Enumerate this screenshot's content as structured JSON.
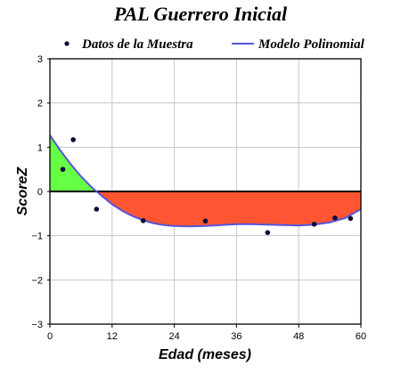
{
  "chart_data": {
    "type": "scatter",
    "title": "PAL Guerrero Inicial",
    "xlabel": "Edad (meses)",
    "ylabel": "ScoreZ",
    "xlim": [
      0,
      60
    ],
    "ylim": [
      -3,
      3
    ],
    "xticks": [
      0,
      12,
      24,
      36,
      48,
      60
    ],
    "yticks": [
      -3,
      -2,
      -1,
      0,
      1,
      2,
      3
    ],
    "grid": true,
    "legend": [
      {
        "label": "Datos de la Muestra",
        "kind": "marker"
      },
      {
        "label": "Modelo Polinomial",
        "kind": "line"
      }
    ],
    "series": [
      {
        "name": "Datos de la Muestra",
        "kind": "scatter",
        "x": [
          2.5,
          4.5,
          9,
          18,
          30,
          42,
          51,
          55,
          58
        ],
        "y": [
          0.5,
          1.17,
          -0.4,
          -0.66,
          -0.67,
          -0.93,
          -0.74,
          -0.6,
          -0.61
        ]
      },
      {
        "name": "Modelo Polinomial",
        "kind": "line",
        "x": [
          0,
          2,
          4,
          6,
          8,
          9,
          10,
          12,
          14,
          16,
          18,
          20,
          22,
          24,
          27,
          30,
          33,
          36,
          39,
          42,
          45,
          48,
          51,
          54,
          57,
          60
        ],
        "y": [
          1.27,
          0.93,
          0.62,
          0.34,
          0.1,
          0.0,
          -0.1,
          -0.29,
          -0.44,
          -0.56,
          -0.65,
          -0.72,
          -0.76,
          -0.78,
          -0.79,
          -0.78,
          -0.76,
          -0.74,
          -0.74,
          -0.75,
          -0.76,
          -0.77,
          -0.75,
          -0.7,
          -0.6,
          -0.4
        ]
      }
    ],
    "fill": {
      "positive_color": "#66ff44",
      "negative_color": "#ff5533"
    },
    "colors": {
      "markers": "#0a0a3a",
      "model_line": "#5555dd",
      "zero_line": "#000000",
      "grid": "#c8c8c8"
    }
  }
}
